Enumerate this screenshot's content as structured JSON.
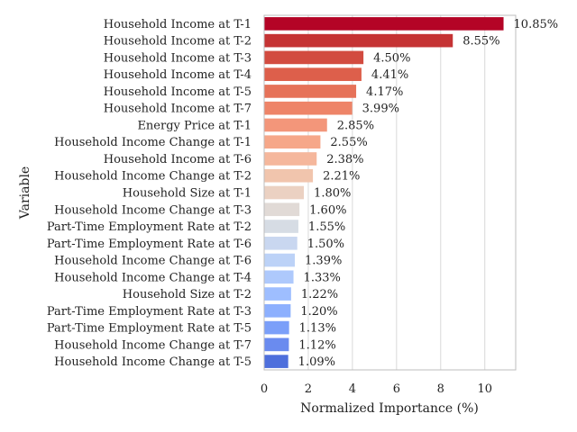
{
  "chart_data": {
    "type": "bar",
    "orientation": "horizontal",
    "xlabel": "Normalized Importance (%)",
    "ylabel": "Variable",
    "xlim": [
      0,
      11.4
    ],
    "x_ticks": [
      0,
      2,
      4,
      6,
      8,
      10
    ],
    "grid": true,
    "categories": [
      "Household Income at T-1",
      "Household Income at T-2",
      "Household Income at T-3",
      "Household Income at T-4",
      "Household Income at T-5",
      "Household Income at T-7",
      "Energy Price at T-1",
      "Household Income Change at T-1",
      "Household Income at T-6",
      "Household Income Change at T-2",
      "Household Size at T-1",
      "Household Income Change at T-3",
      "Part-Time Employment Rate at T-2",
      "Part-Time Employment Rate at T-6",
      "Household Income Change at T-6",
      "Household Income Change at T-4",
      "Household Size at T-2",
      "Part-Time Employment Rate at T-3",
      "Part-Time Employment Rate at T-5",
      "Household Income Change at T-7",
      "Household Income Change at T-5"
    ],
    "values": [
      10.85,
      8.55,
      4.5,
      4.41,
      4.17,
      3.99,
      2.85,
      2.55,
      2.38,
      2.21,
      1.8,
      1.6,
      1.55,
      1.5,
      1.39,
      1.33,
      1.22,
      1.2,
      1.13,
      1.12,
      1.09
    ],
    "value_labels": [
      "10.85%",
      "8.55%",
      "4.50%",
      "4.41%",
      "4.17%",
      "3.99%",
      "2.85%",
      "2.55%",
      "2.38%",
      "2.21%",
      "1.80%",
      "1.60%",
      "1.55%",
      "1.50%",
      "1.39%",
      "1.33%",
      "1.22%",
      "1.20%",
      "1.13%",
      "1.12%",
      "1.09%"
    ],
    "colors": [
      "#b40426",
      "#c53334",
      "#d24b40",
      "#dd5f4b",
      "#e67259",
      "#ee8468",
      "#f3967a",
      "#f6a789",
      "#f5b79c",
      "#f1c5ad",
      "#ebd1c2",
      "#e1dad6",
      "#d6dce4",
      "#c9d7f0",
      "#bcd2f7",
      "#aec9fc",
      "#9ebeff",
      "#8db0fe",
      "#7b9ff9",
      "#6a8bef",
      "#4e6fdc"
    ]
  }
}
